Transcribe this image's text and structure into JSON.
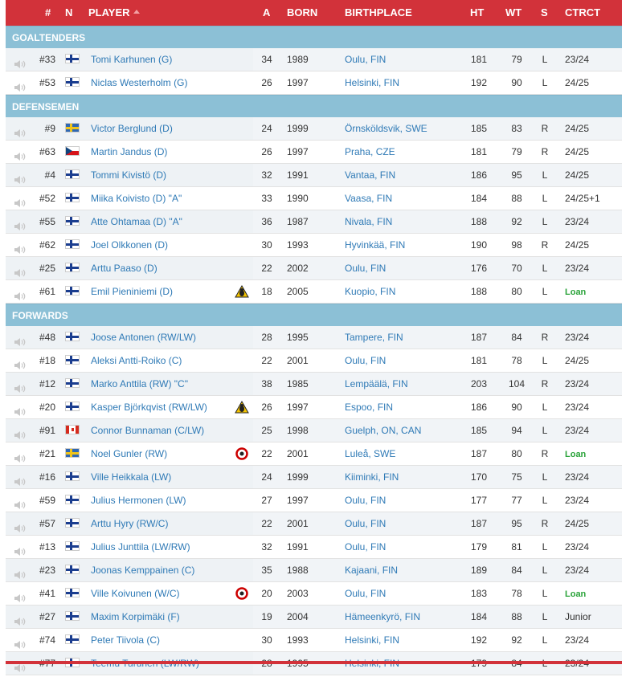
{
  "header": {
    "num": "#",
    "n": "N",
    "player": "PLAYER",
    "a": "A",
    "born": "BORN",
    "birthplace": "BIRTHPLACE",
    "ht": "HT",
    "wt": "WT",
    "s": "S",
    "ctrct": "CTRCT"
  },
  "colors": {
    "header": "#d2323a",
    "section": "#8cc0d6",
    "link": "#2f7ab6",
    "loan": "#2aa33a"
  },
  "sections": [
    {
      "title": "GOALTENDERS",
      "players": [
        {
          "num": "#33",
          "flag": "fin",
          "name": "Tomi Karhunen (G)",
          "a": "34",
          "born": "1989",
          "bp": "Oulu, FIN",
          "ht": "181",
          "wt": "79",
          "s": "L",
          "ct": "23/24",
          "loan": false,
          "logo": ""
        },
        {
          "num": "#53",
          "flag": "fin",
          "name": "Niclas Westerholm (G)",
          "a": "26",
          "born": "1997",
          "bp": "Helsinki, FIN",
          "ht": "192",
          "wt": "90",
          "s": "L",
          "ct": "24/25",
          "loan": false,
          "logo": ""
        }
      ]
    },
    {
      "title": "DEFENSEMEN",
      "players": [
        {
          "num": "#9",
          "flag": "swe",
          "name": "Victor Berglund (D)",
          "a": "24",
          "born": "1999",
          "bp": "Örnsköldsvik, SWE",
          "ht": "185",
          "wt": "83",
          "s": "R",
          "ct": "24/25",
          "loan": false,
          "logo": ""
        },
        {
          "num": "#63",
          "flag": "cze",
          "name": "Martin Jandus (D)",
          "a": "26",
          "born": "1997",
          "bp": "Praha, CZE",
          "ht": "181",
          "wt": "79",
          "s": "R",
          "ct": "24/25",
          "loan": false,
          "logo": ""
        },
        {
          "num": "#4",
          "flag": "fin",
          "name": "Tommi Kivistö (D)",
          "a": "32",
          "born": "1991",
          "bp": "Vantaa, FIN",
          "ht": "186",
          "wt": "95",
          "s": "L",
          "ct": "24/25",
          "loan": false,
          "logo": ""
        },
        {
          "num": "#52",
          "flag": "fin",
          "name": "Miika Koivisto (D)   \"A\"",
          "a": "33",
          "born": "1990",
          "bp": "Vaasa, FIN",
          "ht": "184",
          "wt": "88",
          "s": "L",
          "ct": "24/25+1",
          "loan": false,
          "logo": ""
        },
        {
          "num": "#55",
          "flag": "fin",
          "name": "Atte Ohtamaa (D)   \"A\"",
          "a": "36",
          "born": "1987",
          "bp": "Nivala, FIN",
          "ht": "188",
          "wt": "92",
          "s": "L",
          "ct": "23/24",
          "loan": false,
          "logo": ""
        },
        {
          "num": "#62",
          "flag": "fin",
          "name": "Joel Olkkonen (D)",
          "a": "30",
          "born": "1993",
          "bp": "Hyvinkää, FIN",
          "ht": "190",
          "wt": "98",
          "s": "R",
          "ct": "24/25",
          "loan": false,
          "logo": ""
        },
        {
          "num": "#25",
          "flag": "fin",
          "name": "Arttu Paaso (D)",
          "a": "22",
          "born": "2002",
          "bp": "Oulu, FIN",
          "ht": "176",
          "wt": "70",
          "s": "L",
          "ct": "23/24",
          "loan": false,
          "logo": ""
        },
        {
          "num": "#61",
          "flag": "fin",
          "name": "Emil Pieniniemi (D)",
          "a": "18",
          "born": "2005",
          "bp": "Kuopio, FIN",
          "ht": "188",
          "wt": "80",
          "s": "L",
          "ct": "Loan",
          "loan": true,
          "logo": "penguins"
        }
      ]
    },
    {
      "title": "FORWARDS",
      "players": [
        {
          "num": "#48",
          "flag": "fin",
          "name": "Joose Antonen (RW/LW)",
          "a": "28",
          "born": "1995",
          "bp": "Tampere, FIN",
          "ht": "187",
          "wt": "84",
          "s": "R",
          "ct": "23/24",
          "loan": false,
          "logo": ""
        },
        {
          "num": "#18",
          "flag": "fin",
          "name": "Aleksi Antti-Roiko (C)",
          "a": "22",
          "born": "2001",
          "bp": "Oulu, FIN",
          "ht": "181",
          "wt": "78",
          "s": "L",
          "ct": "24/25",
          "loan": false,
          "logo": ""
        },
        {
          "num": "#12",
          "flag": "fin",
          "name": "Marko Anttila (RW)   \"C\"",
          "a": "38",
          "born": "1985",
          "bp": "Lempäälä, FIN",
          "ht": "203",
          "wt": "104",
          "s": "R",
          "ct": "23/24",
          "loan": false,
          "logo": ""
        },
        {
          "num": "#20",
          "flag": "fin",
          "name": "Kasper Björkqvist (RW/LW)",
          "a": "26",
          "born": "1997",
          "bp": "Espoo, FIN",
          "ht": "186",
          "wt": "90",
          "s": "L",
          "ct": "23/24",
          "loan": false,
          "logo": "penguins"
        },
        {
          "num": "#91",
          "flag": "can",
          "name": "Connor Bunnaman (C/LW)",
          "a": "25",
          "born": "1998",
          "bp": "Guelph, ON, CAN",
          "ht": "185",
          "wt": "94",
          "s": "L",
          "ct": "23/24",
          "loan": false,
          "logo": ""
        },
        {
          "num": "#21",
          "flag": "swe",
          "name": "Noel Gunler (RW)",
          "a": "22",
          "born": "2001",
          "bp": "Luleå, SWE",
          "ht": "187",
          "wt": "80",
          "s": "R",
          "ct": "Loan",
          "loan": true,
          "logo": "hurricanes"
        },
        {
          "num": "#16",
          "flag": "fin",
          "name": "Ville Heikkala (LW)",
          "a": "24",
          "born": "1999",
          "bp": "Kiiminki, FIN",
          "ht": "170",
          "wt": "75",
          "s": "L",
          "ct": "23/24",
          "loan": false,
          "logo": ""
        },
        {
          "num": "#59",
          "flag": "fin",
          "name": "Julius Hermonen (LW)",
          "a": "27",
          "born": "1997",
          "bp": "Oulu, FIN",
          "ht": "177",
          "wt": "77",
          "s": "L",
          "ct": "23/24",
          "loan": false,
          "logo": ""
        },
        {
          "num": "#57",
          "flag": "fin",
          "name": "Arttu Hyry (RW/C)",
          "a": "22",
          "born": "2001",
          "bp": "Oulu, FIN",
          "ht": "187",
          "wt": "95",
          "s": "R",
          "ct": "24/25",
          "loan": false,
          "logo": ""
        },
        {
          "num": "#13",
          "flag": "fin",
          "name": "Julius Junttila (LW/RW)",
          "a": "32",
          "born": "1991",
          "bp": "Oulu, FIN",
          "ht": "179",
          "wt": "81",
          "s": "L",
          "ct": "23/24",
          "loan": false,
          "logo": ""
        },
        {
          "num": "#23",
          "flag": "fin",
          "name": "Joonas Kemppainen (C)",
          "a": "35",
          "born": "1988",
          "bp": "Kajaani, FIN",
          "ht": "189",
          "wt": "84",
          "s": "L",
          "ct": "23/24",
          "loan": false,
          "logo": ""
        },
        {
          "num": "#41",
          "flag": "fin",
          "name": "Ville Koivunen (W/C)",
          "a": "20",
          "born": "2003",
          "bp": "Oulu, FIN",
          "ht": "183",
          "wt": "78",
          "s": "L",
          "ct": "Loan",
          "loan": true,
          "logo": "hurricanes"
        },
        {
          "num": "#27",
          "flag": "fin",
          "name": "Maxim Korpimäki (F)",
          "a": "19",
          "born": "2004",
          "bp": "Hämeenkyrö, FIN",
          "ht": "184",
          "wt": "88",
          "s": "L",
          "ct": "Junior",
          "loan": false,
          "logo": ""
        },
        {
          "num": "#74",
          "flag": "fin",
          "name": "Peter Tiivola (C)",
          "a": "30",
          "born": "1993",
          "bp": "Helsinki, FIN",
          "ht": "192",
          "wt": "92",
          "s": "L",
          "ct": "23/24",
          "loan": false,
          "logo": ""
        },
        {
          "num": "#77",
          "flag": "fin",
          "name": "Teemu Turunen (LW/RW)",
          "a": "28",
          "born": "1995",
          "bp": "Helsinki, FIN",
          "ht": "179",
          "wt": "84",
          "s": "L",
          "ct": "23/24",
          "loan": false,
          "logo": ""
        }
      ]
    }
  ]
}
